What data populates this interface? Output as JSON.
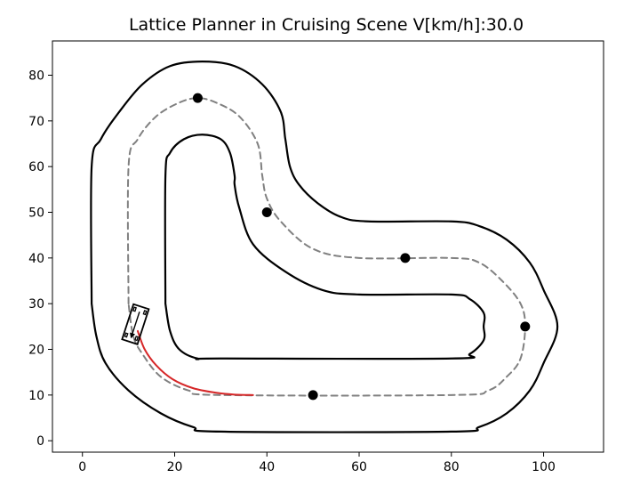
{
  "chart_data": {
    "type": "line",
    "title": "Lattice Planner in Cruising Scene V[km/h]:30.0",
    "xlabel": "",
    "ylabel": "",
    "xlim": [
      -6.5,
      113
    ],
    "ylim": [
      -2.5,
      87.5
    ],
    "xticks": [
      0,
      20,
      40,
      60,
      80,
      100
    ],
    "yticks": [
      0,
      10,
      20,
      30,
      40,
      50,
      60,
      70,
      80
    ],
    "grid": false,
    "legend": "none",
    "colors": {
      "boundary": "#000000",
      "reference_line": "#808080",
      "planned_path": "#d62728",
      "waypoint": "#000000"
    },
    "series": [
      {
        "role": "outer-boundary",
        "style": "solid",
        "points": [
          [
            2,
            30
          ],
          [
            2,
            60
          ],
          [
            4,
            66
          ],
          [
            8,
            72
          ],
          [
            13,
            78
          ],
          [
            19,
            82
          ],
          [
            26,
            83
          ],
          [
            33,
            82
          ],
          [
            39,
            78
          ],
          [
            43,
            72
          ],
          [
            44,
            66
          ],
          [
            45,
            60
          ],
          [
            47,
            56
          ],
          [
            51,
            52
          ],
          [
            56,
            49
          ],
          [
            62,
            48
          ],
          [
            80,
            48
          ],
          [
            86,
            47
          ],
          [
            92,
            44
          ],
          [
            97,
            39
          ],
          [
            100,
            33
          ],
          [
            103,
            25
          ],
          [
            100,
            17
          ],
          [
            97,
            11
          ],
          [
            92,
            6
          ],
          [
            86,
            3
          ],
          [
            80,
            2
          ],
          [
            30,
            2
          ],
          [
            24,
            3
          ],
          [
            17,
            6
          ],
          [
            10,
            11
          ],
          [
            5,
            17
          ],
          [
            3,
            23
          ],
          [
            2,
            30
          ]
        ]
      },
      {
        "role": "inner-boundary",
        "style": "solid",
        "points": [
          [
            18,
            30
          ],
          [
            18,
            58
          ],
          [
            19,
            63
          ],
          [
            22,
            66
          ],
          [
            26,
            67
          ],
          [
            30,
            66
          ],
          [
            32,
            63
          ],
          [
            33,
            58
          ],
          [
            33,
            56
          ],
          [
            34,
            51
          ],
          [
            37,
            43
          ],
          [
            44,
            37
          ],
          [
            52,
            33
          ],
          [
            60,
            32
          ],
          [
            80,
            32
          ],
          [
            84,
            31
          ],
          [
            87,
            28
          ],
          [
            87,
            25
          ],
          [
            87,
            22
          ],
          [
            84,
            19
          ],
          [
            80,
            18
          ],
          [
            30,
            18
          ],
          [
            25,
            18
          ],
          [
            21,
            20
          ],
          [
            19,
            24
          ],
          [
            18,
            30
          ]
        ]
      },
      {
        "role": "reference-line",
        "style": "dashed",
        "points": [
          [
            10,
            30
          ],
          [
            10,
            60
          ],
          [
            12,
            66
          ],
          [
            16,
            71
          ],
          [
            21,
            74
          ],
          [
            25,
            75
          ],
          [
            29,
            74
          ],
          [
            34,
            71
          ],
          [
            38,
            65
          ],
          [
            39,
            58
          ],
          [
            40,
            53
          ],
          [
            43,
            48
          ],
          [
            50,
            42
          ],
          [
            60,
            40
          ],
          [
            80,
            40
          ],
          [
            86,
            39
          ],
          [
            91,
            35
          ],
          [
            95,
            30
          ],
          [
            96,
            25
          ],
          [
            95,
            18
          ],
          [
            92,
            14
          ],
          [
            88,
            11
          ],
          [
            80,
            10
          ],
          [
            30,
            10
          ],
          [
            23,
            11
          ],
          [
            17,
            14
          ],
          [
            13,
            19
          ],
          [
            11,
            23
          ],
          [
            10,
            30
          ]
        ]
      },
      {
        "role": "planned-path",
        "style": "solid",
        "points": [
          [
            12,
            24
          ],
          [
            13.5,
            20
          ],
          [
            16,
            16.5
          ],
          [
            19.5,
            13.5
          ],
          [
            24,
            11.5
          ],
          [
            29,
            10.5
          ],
          [
            33,
            10.1
          ],
          [
            37,
            10
          ]
        ]
      }
    ],
    "waypoints": {
      "x": [
        25,
        40,
        70,
        96,
        50
      ],
      "y": [
        75,
        50,
        40,
        25,
        10
      ]
    },
    "vehicle": {
      "x": 11.5,
      "y": 25.5,
      "heading_deg": -108,
      "length": 8,
      "width": 3.5
    }
  }
}
